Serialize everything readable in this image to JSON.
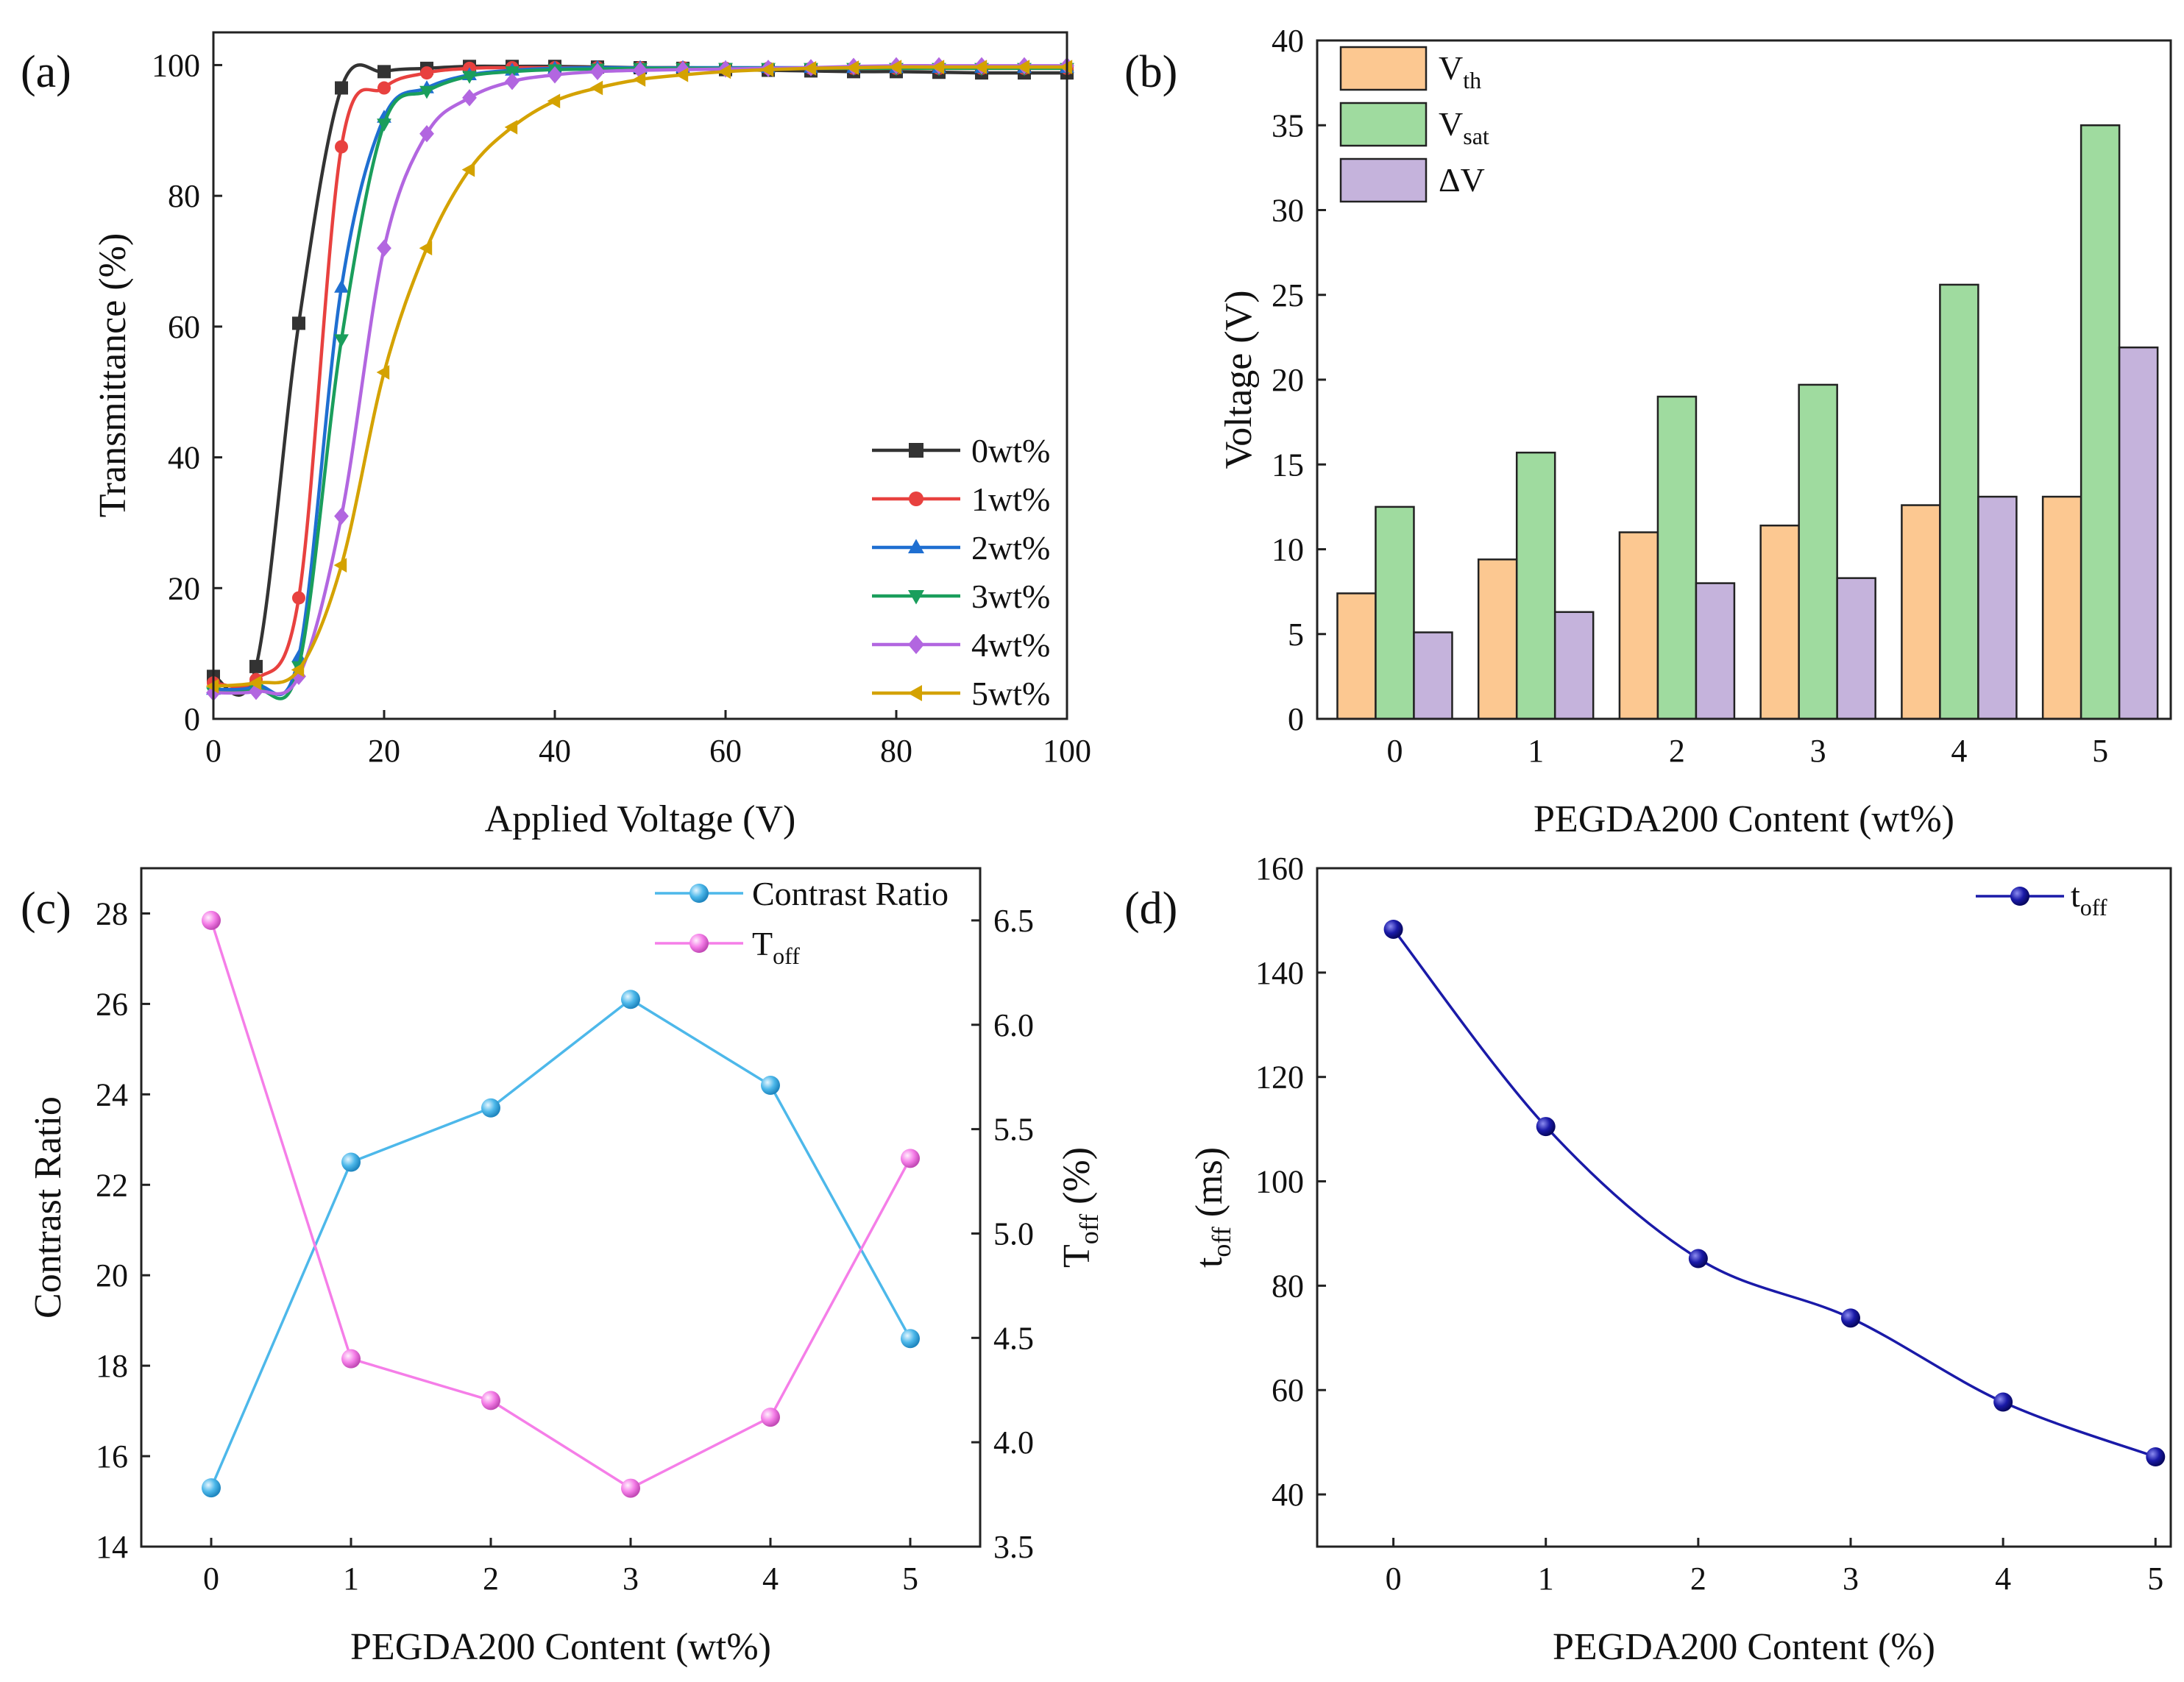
{
  "panels": [
    {
      "id": "a",
      "label": "(a)",
      "chart_data": {
        "type": "line",
        "xlabel": "Applied Voltage (V)",
        "ylabel": "Transmittance (%)",
        "xlim": [
          0,
          100
        ],
        "ylim": [
          0,
          105
        ],
        "xticks": [
          0,
          20,
          40,
          60,
          80,
          100
        ],
        "yticks": [
          0,
          20,
          40,
          60,
          80,
          100
        ],
        "legend_position": "lower-right",
        "series": [
          {
            "name": "0wt%",
            "color": "#333333",
            "marker": "square",
            "x": [
              0,
              5,
              10,
              15,
              20,
              25,
              30,
              35,
              40,
              45,
              50,
              55,
              60,
              65,
              70,
              75,
              80,
              85,
              90,
              95,
              100
            ],
            "y": [
              6.5,
              8,
              60.5,
              96.5,
              99,
              99.5,
              99.8,
              99.8,
              99.8,
              99.7,
              99.6,
              99.5,
              99.3,
              99.2,
              99.1,
              99,
              99,
              98.9,
              98.8,
              98.8,
              98.8
            ]
          },
          {
            "name": "1wt%",
            "color": "#e8413f",
            "marker": "circle",
            "x": [
              0,
              5,
              10,
              15,
              20,
              25,
              30,
              35,
              40,
              45,
              50,
              55,
              60,
              65,
              70,
              75,
              80,
              85,
              90,
              95,
              100
            ],
            "y": [
              5.5,
              6,
              18.5,
              87.5,
              96.5,
              98.8,
              99.5,
              99.6,
              99.6,
              99.6,
              99.6,
              99.6,
              99.5,
              99.5,
              99.5,
              99.5,
              99.5,
              99.5,
              99.5,
              99.5,
              99.5
            ]
          },
          {
            "name": "2wt%",
            "color": "#1f6fd1",
            "marker": "triangle-up",
            "x": [
              0,
              5,
              10,
              15,
              20,
              25,
              30,
              35,
              40,
              45,
              50,
              55,
              60,
              65,
              70,
              75,
              80,
              85,
              90,
              95,
              100
            ],
            "y": [
              4.5,
              5,
              9.5,
              66,
              92,
              96.5,
              98.5,
              99.2,
              99.5,
              99.6,
              99.6,
              99.6,
              99.6,
              99.6,
              99.6,
              99.6,
              99.6,
              99.6,
              99.6,
              99.6,
              99.6
            ]
          },
          {
            "name": "3wt%",
            "color": "#1a9e5c",
            "marker": "triangle-down",
            "x": [
              0,
              5,
              10,
              15,
              20,
              25,
              30,
              35,
              40,
              45,
              50,
              55,
              60,
              65,
              70,
              75,
              80,
              85,
              90,
              95,
              100
            ],
            "y": [
              4,
              4.5,
              8,
              58,
              91,
              96,
              98.3,
              99,
              99.3,
              99.4,
              99.5,
              99.5,
              99.5,
              99.5,
              99.5,
              99.5,
              99.5,
              99.5,
              99.5,
              99.5,
              99.5
            ]
          },
          {
            "name": "4wt%",
            "color": "#b266e0",
            "marker": "diamond",
            "x": [
              0,
              5,
              10,
              15,
              20,
              25,
              30,
              35,
              40,
              45,
              50,
              55,
              60,
              65,
              70,
              75,
              80,
              85,
              90,
              95,
              100
            ],
            "y": [
              4,
              4.2,
              6.5,
              31,
              72,
              89.5,
              95,
              97.5,
              98.5,
              99,
              99.2,
              99.3,
              99.4,
              99.5,
              99.6,
              99.8,
              99.9,
              99.9,
              99.9,
              99.9,
              99.9
            ]
          },
          {
            "name": "5wt%",
            "color": "#d4a200",
            "marker": "triangle-left",
            "x": [
              0,
              5,
              10,
              15,
              20,
              25,
              30,
              35,
              40,
              45,
              50,
              55,
              60,
              65,
              70,
              75,
              80,
              85,
              90,
              95,
              100
            ],
            "y": [
              5,
              5.5,
              7.5,
              23.5,
              53,
              72,
              84,
              90.5,
              94.5,
              96.5,
              97.8,
              98.5,
              99,
              99.3,
              99.5,
              99.6,
              99.7,
              99.7,
              99.7,
              99.7,
              99.7
            ]
          }
        ]
      }
    },
    {
      "id": "b",
      "label": "(b)",
      "chart_data": {
        "type": "bar",
        "xlabel": "PEGDA200 Content (wt%)",
        "ylabel": "Voltage (V)",
        "ylim": [
          0,
          40
        ],
        "yticks": [
          0,
          5,
          10,
          15,
          20,
          25,
          30,
          35,
          40
        ],
        "categories": [
          "0",
          "1",
          "2",
          "3",
          "4",
          "5"
        ],
        "legend_position": "top-left",
        "series": [
          {
            "name": "V",
            "sub": "th",
            "color": "#fcc891",
            "values": [
              7.4,
              9.4,
              11,
              11.4,
              12.6,
              13.1
            ]
          },
          {
            "name": "V",
            "sub": "sat",
            "color": "#9fdb9f",
            "values": [
              12.5,
              15.7,
              19,
              19.7,
              25.6,
              35
            ]
          },
          {
            "name": "ΔV",
            "sub": "",
            "color": "#c5b3dc",
            "values": [
              5.1,
              6.3,
              8,
              8.3,
              13.1,
              21.9
            ]
          }
        ]
      }
    },
    {
      "id": "c",
      "label": "(c)",
      "chart_data": {
        "type": "line",
        "xlabel": "PEGDA200 Content (wt%)",
        "ylabel": "Contrast Ratio",
        "ylabel2_main": "T",
        "ylabel2_sub": "off",
        "ylabel2_tail": " (%)",
        "xlim": [
          -0.5,
          5.5
        ],
        "xticks": [
          0,
          1,
          2,
          3,
          4,
          5
        ],
        "ylim": [
          14,
          29
        ],
        "yticks": [
          14,
          16,
          18,
          20,
          22,
          24,
          26,
          28
        ],
        "ylim2": [
          3.5,
          6.75
        ],
        "yticks2": [
          "3.5",
          "4.0",
          "4.5",
          "5.0",
          "5.5",
          "6.0",
          "6.5"
        ],
        "legend_position": "top-right",
        "series": [
          {
            "name": "Contrast Ratio",
            "sub": "",
            "axis": "left",
            "color": "#4db8ea",
            "x": [
              0,
              1,
              2,
              3,
              4,
              5
            ],
            "y": [
              15.3,
              22.5,
              23.7,
              26.1,
              24.2,
              18.6
            ]
          },
          {
            "name": "T",
            "sub": "off",
            "axis": "right",
            "color": "#f57ee8",
            "x": [
              0,
              1,
              2,
              3,
              4,
              5
            ],
            "y": [
              6.5,
              4.4,
              4.2,
              3.78,
              4.12,
              5.36
            ]
          }
        ]
      }
    },
    {
      "id": "d",
      "label": "(d)",
      "chart_data": {
        "type": "line",
        "xlabel": "PEGDA200 Content (%)",
        "ylabel_main": "t",
        "ylabel_sub": "off",
        "ylabel_tail": " (ms)",
        "xlim": [
          -0.5,
          5.1
        ],
        "xticks": [
          0,
          1,
          2,
          3,
          4,
          5
        ],
        "ylim": [
          30,
          160
        ],
        "yticks": [
          40,
          60,
          80,
          100,
          120,
          140,
          160
        ],
        "legend_position": "top-right",
        "series": [
          {
            "name": "t",
            "sub": "off",
            "color": "#1a1aa8",
            "x": [
              0,
              1,
              2,
              3,
              4,
              5
            ],
            "y": [
              148.3,
              110.5,
              85.2,
              73.8,
              57.7,
              47.2
            ]
          }
        ]
      }
    }
  ]
}
